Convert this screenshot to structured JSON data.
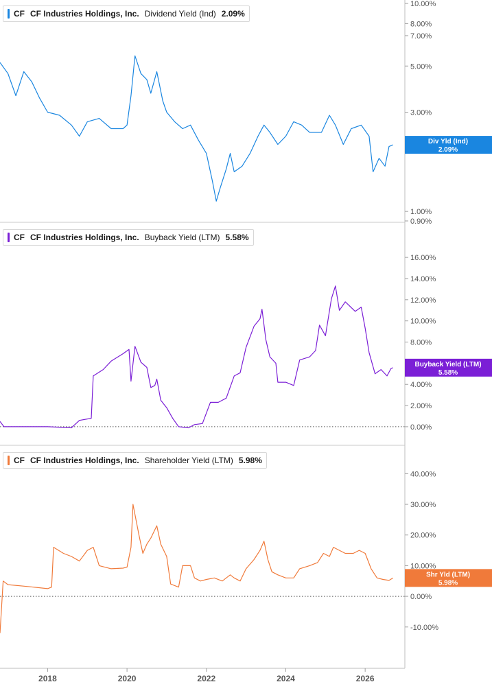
{
  "chart_data": [
    {
      "type": "line",
      "ticker": "CF",
      "company": "CF Industries Holdings, Inc.",
      "metric": "Dividend Yield (Ind)",
      "current_value": "2.09%",
      "tag_label": "Div Yld (Ind)",
      "tag_value": "2.09%",
      "color": "#1a86e0",
      "scale": "log",
      "ylim": [
        0.9,
        10.0
      ],
      "ticks": [
        {
          "v": 10,
          "label": "10.00%"
        },
        {
          "v": 8,
          "label": "8.00%"
        },
        {
          "v": 7,
          "label": "7.00%"
        },
        {
          "v": 5,
          "label": "5.00%"
        },
        {
          "v": 3,
          "label": "3.00%"
        },
        {
          "v": 2,
          "label": "2.00%"
        },
        {
          "v": 1,
          "label": "1.00%"
        },
        {
          "v": 0.9,
          "label": "0.90%"
        }
      ],
      "series": [
        {
          "values": [
            [
              2016.8,
              5.2
            ],
            [
              2017.0,
              4.6
            ],
            [
              2017.2,
              3.6
            ],
            [
              2017.4,
              4.7
            ],
            [
              2017.6,
              4.2
            ],
            [
              2017.8,
              3.5
            ],
            [
              2018.0,
              3.0
            ],
            [
              2018.3,
              2.9
            ],
            [
              2018.6,
              2.6
            ],
            [
              2018.8,
              2.3
            ],
            [
              2019.0,
              2.7
            ],
            [
              2019.3,
              2.8
            ],
            [
              2019.6,
              2.5
            ],
            [
              2019.9,
              2.5
            ],
            [
              2020.0,
              2.6
            ],
            [
              2020.1,
              3.6
            ],
            [
              2020.2,
              5.6
            ],
            [
              2020.35,
              4.6
            ],
            [
              2020.5,
              4.3
            ],
            [
              2020.6,
              3.7
            ],
            [
              2020.75,
              4.7
            ],
            [
              2020.9,
              3.4
            ],
            [
              2021.0,
              3.0
            ],
            [
              2021.2,
              2.7
            ],
            [
              2021.4,
              2.5
            ],
            [
              2021.6,
              2.6
            ],
            [
              2021.8,
              2.2
            ],
            [
              2022.0,
              1.9
            ],
            [
              2022.15,
              1.4
            ],
            [
              2022.25,
              1.12
            ],
            [
              2022.35,
              1.3
            ],
            [
              2022.5,
              1.6
            ],
            [
              2022.6,
              1.9
            ],
            [
              2022.7,
              1.55
            ],
            [
              2022.9,
              1.65
            ],
            [
              2023.1,
              1.9
            ],
            [
              2023.3,
              2.3
            ],
            [
              2023.45,
              2.6
            ],
            [
              2023.6,
              2.4
            ],
            [
              2023.8,
              2.1
            ],
            [
              2024.0,
              2.3
            ],
            [
              2024.2,
              2.7
            ],
            [
              2024.4,
              2.6
            ],
            [
              2024.6,
              2.4
            ],
            [
              2024.9,
              2.4
            ],
            [
              2025.1,
              2.9
            ],
            [
              2025.25,
              2.6
            ],
            [
              2025.45,
              2.1
            ],
            [
              2025.65,
              2.5
            ],
            [
              2025.9,
              2.6
            ],
            [
              2026.1,
              2.3
            ],
            [
              2026.2,
              1.55
            ],
            [
              2026.35,
              1.8
            ],
            [
              2026.5,
              1.65
            ],
            [
              2026.6,
              2.05
            ],
            [
              2026.7,
              2.09
            ]
          ]
        }
      ]
    },
    {
      "type": "line",
      "ticker": "CF",
      "company": "CF Industries Holdings, Inc.",
      "metric": "Buyback Yield (LTM)",
      "current_value": "5.58%",
      "tag_label": "Buyback Yield (LTM)",
      "tag_value": "5.58%",
      "color": "#7b1fd6",
      "scale": "linear",
      "ylim": [
        -0.2,
        17.5
      ],
      "ticks": [
        {
          "v": 16,
          "label": "16.00%"
        },
        {
          "v": 14,
          "label": "14.00%"
        },
        {
          "v": 12,
          "label": "12.00%"
        },
        {
          "v": 10,
          "label": "10.00%"
        },
        {
          "v": 8,
          "label": "8.00%"
        },
        {
          "v": 4,
          "label": "4.00%"
        },
        {
          "v": 2,
          "label": "2.00%"
        },
        {
          "v": 0,
          "label": "0.00%"
        }
      ],
      "series": [
        {
          "values": [
            [
              2016.8,
              0.5
            ],
            [
              2016.9,
              0.0
            ],
            [
              2017.5,
              0.0
            ],
            [
              2018.0,
              0.0
            ],
            [
              2018.6,
              -0.1
            ],
            [
              2018.8,
              0.6
            ],
            [
              2019.1,
              0.8
            ],
            [
              2019.15,
              4.8
            ],
            [
              2019.4,
              5.4
            ],
            [
              2019.6,
              6.2
            ],
            [
              2019.9,
              6.9
            ],
            [
              2020.05,
              7.3
            ],
            [
              2020.1,
              4.3
            ],
            [
              2020.2,
              7.6
            ],
            [
              2020.35,
              6.1
            ],
            [
              2020.5,
              5.6
            ],
            [
              2020.6,
              3.7
            ],
            [
              2020.7,
              3.9
            ],
            [
              2020.75,
              4.5
            ],
            [
              2020.85,
              2.5
            ],
            [
              2021.0,
              1.8
            ],
            [
              2021.15,
              0.8
            ],
            [
              2021.3,
              0.0
            ],
            [
              2021.55,
              -0.1
            ],
            [
              2021.7,
              0.2
            ],
            [
              2021.9,
              0.3
            ],
            [
              2022.1,
              2.3
            ],
            [
              2022.3,
              2.3
            ],
            [
              2022.5,
              2.7
            ],
            [
              2022.7,
              4.8
            ],
            [
              2022.85,
              5.1
            ],
            [
              2023.0,
              7.5
            ],
            [
              2023.2,
              9.5
            ],
            [
              2023.35,
              10.2
            ],
            [
              2023.4,
              11.1
            ],
            [
              2023.5,
              8.2
            ],
            [
              2023.6,
              6.6
            ],
            [
              2023.75,
              6.0
            ],
            [
              2023.8,
              4.2
            ],
            [
              2024.0,
              4.2
            ],
            [
              2024.2,
              3.9
            ],
            [
              2024.35,
              6.3
            ],
            [
              2024.6,
              6.6
            ],
            [
              2024.75,
              7.2
            ],
            [
              2024.85,
              9.6
            ],
            [
              2025.0,
              8.6
            ],
            [
              2025.15,
              12.1
            ],
            [
              2025.25,
              13.3
            ],
            [
              2025.35,
              11.0
            ],
            [
              2025.5,
              11.8
            ],
            [
              2025.75,
              10.9
            ],
            [
              2025.9,
              11.3
            ],
            [
              2026.0,
              9.3
            ],
            [
              2026.1,
              7.0
            ],
            [
              2026.25,
              5.0
            ],
            [
              2026.4,
              5.4
            ],
            [
              2026.55,
              4.8
            ],
            [
              2026.65,
              5.5
            ],
            [
              2026.7,
              5.58
            ]
          ]
        }
      ]
    },
    {
      "type": "line",
      "ticker": "CF",
      "company": "CF Industries Holdings, Inc.",
      "metric": "Shareholder Yield (LTM)",
      "current_value": "5.98%",
      "tag_label": "Shr Yld (LTM)",
      "tag_value": "5.98%",
      "color": "#f07a3a",
      "scale": "linear",
      "ylim": [
        -19.0,
        45.0
      ],
      "ticks": [
        {
          "v": 40,
          "label": "40.00%"
        },
        {
          "v": 30,
          "label": "30.00%"
        },
        {
          "v": 20,
          "label": "20.00%"
        },
        {
          "v": 10,
          "label": "10.00%"
        },
        {
          "v": 0,
          "label": "0.00%"
        },
        {
          "v": -10,
          "label": "-10.00%"
        }
      ],
      "series": [
        {
          "values": [
            [
              2016.8,
              -12.0
            ],
            [
              2016.88,
              5.0
            ],
            [
              2017.0,
              3.8
            ],
            [
              2017.5,
              3.2
            ],
            [
              2018.0,
              2.5
            ],
            [
              2018.1,
              3.0
            ],
            [
              2018.15,
              16.0
            ],
            [
              2018.4,
              14.0
            ],
            [
              2018.6,
              13.0
            ],
            [
              2018.8,
              11.5
            ],
            [
              2019.0,
              15.0
            ],
            [
              2019.15,
              16.0
            ],
            [
              2019.3,
              10.0
            ],
            [
              2019.6,
              9.0
            ],
            [
              2019.9,
              9.2
            ],
            [
              2020.0,
              9.5
            ],
            [
              2020.1,
              16.0
            ],
            [
              2020.15,
              30.0
            ],
            [
              2020.3,
              20.0
            ],
            [
              2020.4,
              14.0
            ],
            [
              2020.5,
              17.0
            ],
            [
              2020.6,
              19.0
            ],
            [
              2020.75,
              23.0
            ],
            [
              2020.85,
              17.0
            ],
            [
              2021.0,
              13.0
            ],
            [
              2021.1,
              4.0
            ],
            [
              2021.3,
              3.0
            ],
            [
              2021.4,
              10.0
            ],
            [
              2021.6,
              10.0
            ],
            [
              2021.7,
              6.0
            ],
            [
              2021.85,
              5.0
            ],
            [
              2022.0,
              5.5
            ],
            [
              2022.2,
              6.0
            ],
            [
              2022.4,
              5.0
            ],
            [
              2022.6,
              7.0
            ],
            [
              2022.7,
              6.0
            ],
            [
              2022.85,
              5.0
            ],
            [
              2023.0,
              9.0
            ],
            [
              2023.2,
              12.0
            ],
            [
              2023.35,
              15.0
            ],
            [
              2023.45,
              18.0
            ],
            [
              2023.55,
              12.0
            ],
            [
              2023.65,
              8.0
            ],
            [
              2023.8,
              7.0
            ],
            [
              2024.0,
              6.0
            ],
            [
              2024.2,
              6.0
            ],
            [
              2024.35,
              9.0
            ],
            [
              2024.6,
              10.0
            ],
            [
              2024.8,
              11.0
            ],
            [
              2024.95,
              14.0
            ],
            [
              2025.1,
              13.0
            ],
            [
              2025.2,
              16.0
            ],
            [
              2025.35,
              15.0
            ],
            [
              2025.5,
              14.0
            ],
            [
              2025.7,
              14.0
            ],
            [
              2025.85,
              15.0
            ],
            [
              2026.0,
              14.0
            ],
            [
              2026.15,
              9.0
            ],
            [
              2026.3,
              6.0
            ],
            [
              2026.45,
              5.5
            ],
            [
              2026.6,
              5.2
            ],
            [
              2026.7,
              5.98
            ]
          ]
        }
      ]
    }
  ],
  "x_axis": {
    "xlim": [
      2016.8,
      2027.0
    ],
    "ticks": [
      {
        "v": 2018,
        "label": "2018"
      },
      {
        "v": 2020,
        "label": "2020"
      },
      {
        "v": 2022,
        "label": "2022"
      },
      {
        "v": 2024,
        "label": "2024"
      },
      {
        "v": 2026,
        "label": "2026"
      }
    ]
  }
}
